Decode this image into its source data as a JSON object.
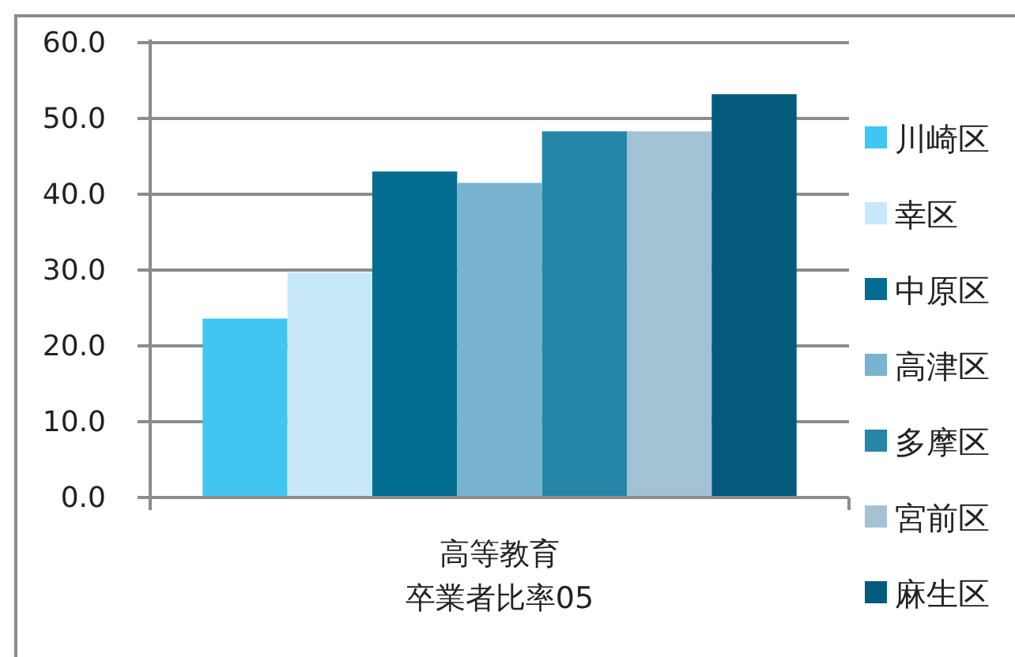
{
  "chart_data": {
    "type": "bar",
    "categories": [
      "高等教育卒業者比率05"
    ],
    "series": [
      {
        "name": "川崎区",
        "color": "#41c6f2",
        "values": [
          23.6
        ]
      },
      {
        "name": "幸区",
        "color": "#c6e8f8",
        "values": [
          29.7
        ]
      },
      {
        "name": "中原区",
        "color": "#036d91",
        "values": [
          43.0
        ]
      },
      {
        "name": "高津区",
        "color": "#78b3d0",
        "values": [
          41.5
        ]
      },
      {
        "name": "多摩区",
        "color": "#2586a7",
        "values": [
          48.3
        ]
      },
      {
        "name": "宮前区",
        "color": "#a3c2d3",
        "values": [
          48.3
        ]
      },
      {
        "name": "麻生区",
        "color": "#035a7d",
        "values": [
          53.2
        ]
      }
    ],
    "ylim": [
      0,
      60
    ],
    "yticks": [
      {
        "value": 0,
        "label": "0.0"
      },
      {
        "value": 10,
        "label": "10.0"
      },
      {
        "value": 20,
        "label": "20.0"
      },
      {
        "value": 30,
        "label": "30.0"
      },
      {
        "value": 40,
        "label": "40.0"
      },
      {
        "value": 50,
        "label": "50.0"
      },
      {
        "value": 60,
        "label": "60.0"
      }
    ],
    "grid": "y",
    "legend": "right"
  }
}
